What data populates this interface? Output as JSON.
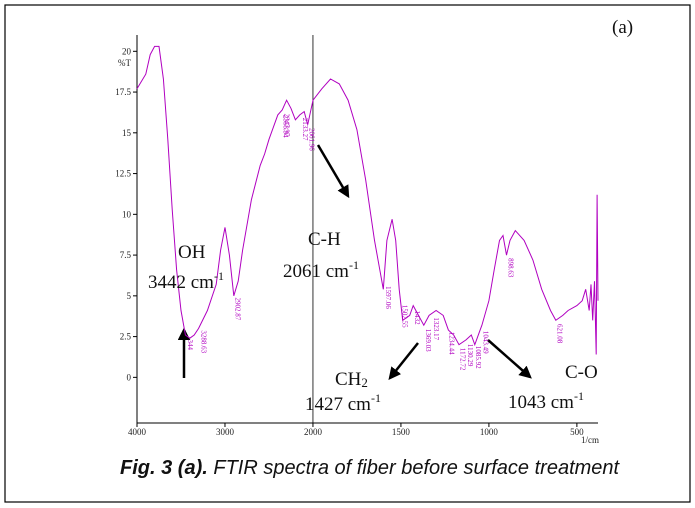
{
  "chart_data": {
    "type": "line",
    "y_label": "%T",
    "x_label": "1/cm",
    "xlim": [
      4000,
      380
    ],
    "x_expand_below": 2000,
    "x_expand_factor": 2,
    "xticks": [
      4000,
      3000,
      2000,
      1500,
      1000,
      500
    ],
    "ylim": [
      -2.8,
      21
    ],
    "yticks": [
      0,
      2.5,
      5,
      7.5,
      10,
      12.5,
      15,
      17.5,
      20
    ],
    "x": [
      4000,
      3900,
      3850,
      3800,
      3750,
      3700,
      3650,
      3600,
      3550,
      3500,
      3450,
      3400,
      3350,
      3300,
      3200,
      3100,
      3050,
      3000,
      2950,
      2900,
      2850,
      2800,
      2700,
      2600,
      2550,
      2500,
      2400,
      2350,
      2300,
      2250,
      2200,
      2150,
      2100,
      2060,
      2000,
      1950,
      1900,
      1850,
      1800,
      1750,
      1700,
      1650,
      1620,
      1600,
      1580,
      1550,
      1530,
      1510,
      1490,
      1450,
      1430,
      1400,
      1370,
      1340,
      1300,
      1260,
      1230,
      1200,
      1170,
      1130,
      1100,
      1080,
      1050,
      1040,
      1000,
      970,
      940,
      920,
      900,
      880,
      850,
      800,
      750,
      700,
      650,
      620,
      580,
      550,
      500,
      470,
      450,
      430,
      420,
      410,
      400,
      390,
      385,
      380
    ],
    "series": [
      {
        "color": "#b000c0",
        "values": [
          17.7,
          18.6,
          19.8,
          20.3,
          20.3,
          18.3,
          14.6,
          10.3,
          6.6,
          4.1,
          2.6,
          2.4,
          2.6,
          3.0,
          4.1,
          5.7,
          7.8,
          9.2,
          7.5,
          5.0,
          5.9,
          7.8,
          10.9,
          13.0,
          13.7,
          14.6,
          16.1,
          16.4,
          17.0,
          16.5,
          15.8,
          16.1,
          16.3,
          15.5,
          17.0,
          17.7,
          18.3,
          18.0,
          17.0,
          15.2,
          12.1,
          8.4,
          6.6,
          5.4,
          8.4,
          9.7,
          8.4,
          5.4,
          3.5,
          3.8,
          4.4,
          3.8,
          3.2,
          3.8,
          4.1,
          3.8,
          2.9,
          2.6,
          2.0,
          2.3,
          2.6,
          2.0,
          2.9,
          3.2,
          4.7,
          6.6,
          8.4,
          8.7,
          7.5,
          8.4,
          9.0,
          8.4,
          7.2,
          5.4,
          4.1,
          3.5,
          3.8,
          4.1,
          4.4,
          4.7,
          5.4,
          4.1,
          5.7,
          3.5,
          5.9,
          1.4,
          11.2,
          4.7
        ]
      }
    ],
    "peak_labels": [
      {
        "value": 3441,
        "label": "344"
      },
      3288.63,
      2902.87,
      2347.97,
      2358.94,
      2133.27,
      2061.96,
      1597.06,
      1502.55,
      1432,
      1369.03,
      1323.17,
      1234.44,
      1172.72,
      1130.29,
      1085.92,
      1043.49,
      898.63,
      621.08
    ],
    "annotations": [
      {
        "text": "(a)"
      },
      {
        "text": "OH"
      },
      {
        "text": "3442 cm",
        "sup": "-1"
      },
      {
        "text": "C-H"
      },
      {
        "text": "2061 cm",
        "sup": "-1"
      },
      {
        "text": "CH",
        "sub": "2"
      },
      {
        "text": "1427 cm",
        "sup": "-1"
      },
      {
        "text": "C-O"
      },
      {
        "text": "1043 cm",
        "sup": "-1"
      }
    ],
    "caption": {
      "label": "Fig. 3 (a).",
      "text": "FTIR spectra of fiber before surface treatment"
    }
  }
}
